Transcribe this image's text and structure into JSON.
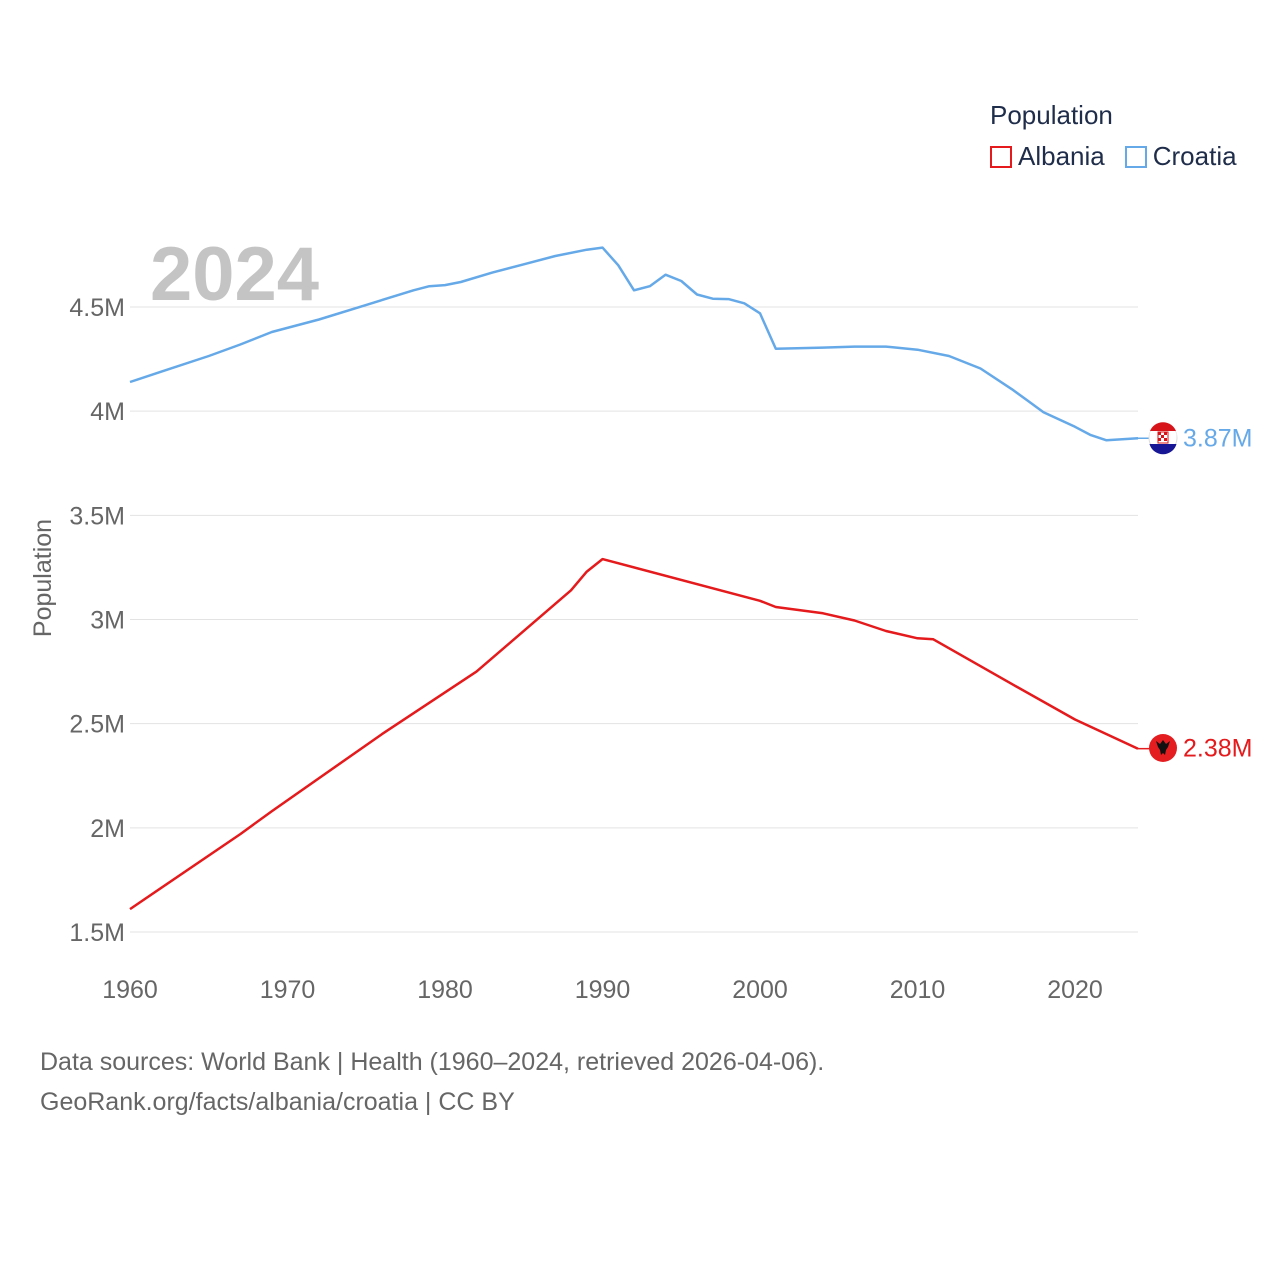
{
  "legend": {
    "title": "Population",
    "items": [
      {
        "name": "Albania",
        "color": "#e41a1c"
      },
      {
        "name": "Croatia",
        "color": "#66a9e8"
      }
    ]
  },
  "year_label": "2024",
  "footer": {
    "line1": "Data sources: World Bank | Health (1960–2024, retrieved 2026-04-06).",
    "line2": "GeoRank.org/facts/albania/croatia | CC BY"
  },
  "chart_data": {
    "type": "line",
    "title": "",
    "xlabel": "",
    "ylabel": "Population",
    "xlim": [
      1960,
      2024
    ],
    "ylim": [
      1500000,
      4850000
    ],
    "x_ticks": [
      1960,
      1970,
      1980,
      1990,
      2000,
      2010,
      2020
    ],
    "y_ticks": [
      {
        "value": 1500000,
        "label": "1.5M"
      },
      {
        "value": 2000000,
        "label": "2M"
      },
      {
        "value": 2500000,
        "label": "2.5M"
      },
      {
        "value": 3000000,
        "label": "3M"
      },
      {
        "value": 3500000,
        "label": "3.5M"
      },
      {
        "value": 4000000,
        "label": "4M"
      },
      {
        "value": 4500000,
        "label": "4.5M"
      }
    ],
    "series": [
      {
        "name": "Croatia",
        "color": "#66a9e8",
        "end_label": "3.87M",
        "points": [
          [
            1960,
            4140000
          ],
          [
            1962,
            4190000
          ],
          [
            1965,
            4265000
          ],
          [
            1967,
            4320000
          ],
          [
            1969,
            4380000
          ],
          [
            1972,
            4440000
          ],
          [
            1975,
            4510000
          ],
          [
            1978,
            4580000
          ],
          [
            1979,
            4600000
          ],
          [
            1980,
            4605000
          ],
          [
            1981,
            4620000
          ],
          [
            1983,
            4665000
          ],
          [
            1985,
            4705000
          ],
          [
            1987,
            4745000
          ],
          [
            1989,
            4775000
          ],
          [
            1990,
            4785000
          ],
          [
            1991,
            4700000
          ],
          [
            1992,
            4580000
          ],
          [
            1993,
            4600000
          ],
          [
            1994,
            4655000
          ],
          [
            1995,
            4625000
          ],
          [
            1996,
            4560000
          ],
          [
            1997,
            4540000
          ],
          [
            1998,
            4538000
          ],
          [
            1999,
            4518000
          ],
          [
            2000,
            4470000
          ],
          [
            2001,
            4300000
          ],
          [
            2004,
            4305000
          ],
          [
            2006,
            4310000
          ],
          [
            2008,
            4310000
          ],
          [
            2010,
            4295000
          ],
          [
            2012,
            4265000
          ],
          [
            2014,
            4205000
          ],
          [
            2016,
            4105000
          ],
          [
            2017,
            4050000
          ],
          [
            2018,
            3995000
          ],
          [
            2020,
            3925000
          ],
          [
            2021,
            3885000
          ],
          [
            2022,
            3860000
          ],
          [
            2024,
            3870000
          ]
        ]
      },
      {
        "name": "Albania",
        "color": "#e41a1c",
        "end_label": "2.38M",
        "points": [
          [
            1960,
            1610000
          ],
          [
            1967,
            1970000
          ],
          [
            1969,
            2080000
          ],
          [
            1976,
            2450000
          ],
          [
            1982,
            2750000
          ],
          [
            1988,
            3140000
          ],
          [
            1989,
            3230000
          ],
          [
            1990,
            3290000
          ],
          [
            2000,
            3090000
          ],
          [
            2001,
            3060000
          ],
          [
            2004,
            3030000
          ],
          [
            2006,
            2995000
          ],
          [
            2008,
            2945000
          ],
          [
            2010,
            2910000
          ],
          [
            2011,
            2905000
          ],
          [
            2016,
            2690000
          ],
          [
            2020,
            2520000
          ],
          [
            2024,
            2380000
          ]
        ]
      }
    ]
  }
}
